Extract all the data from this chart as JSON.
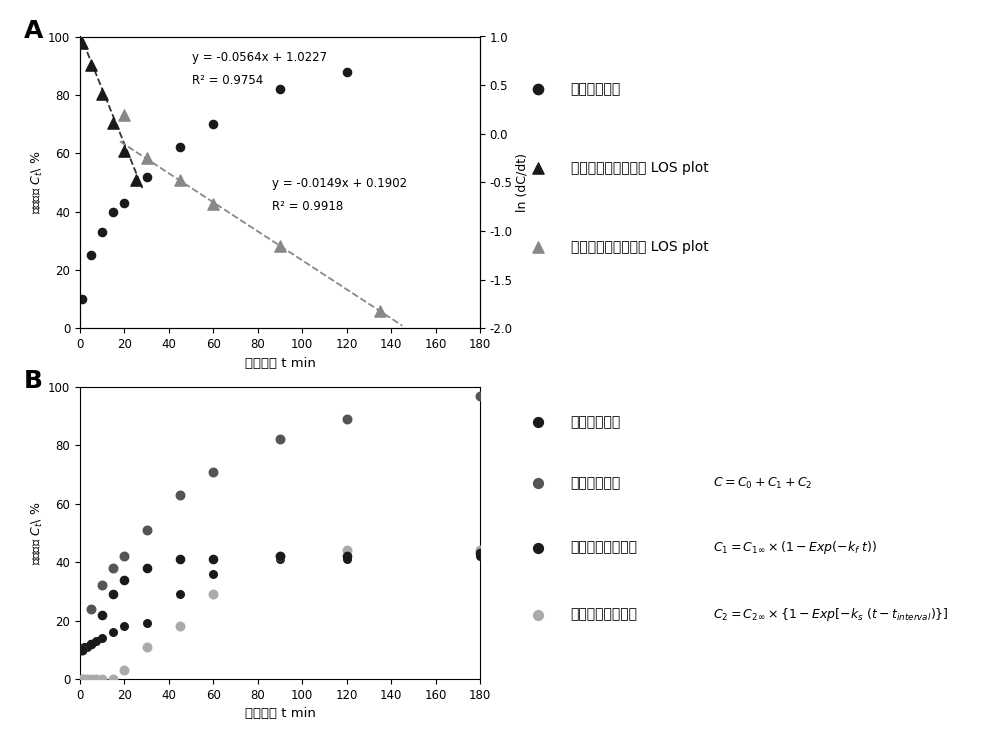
{
  "panel_A": {
    "raw_data_x": [
      1,
      5,
      10,
      15,
      20,
      30,
      45,
      60,
      90,
      120
    ],
    "raw_data_y": [
      10,
      25,
      33,
      40,
      43,
      52,
      62,
      70,
      82,
      88
    ],
    "fast_tri_x": [
      1,
      5,
      10,
      15,
      20,
      25
    ],
    "fast_tri_y_ln": [
      0.93,
      0.71,
      0.41,
      0.11,
      -0.18,
      -0.47
    ],
    "slow_tri_x": [
      20,
      30,
      45,
      60,
      90,
      135
    ],
    "slow_tri_y_ln": [
      0.19,
      -0.25,
      -0.47,
      -0.72,
      -1.15,
      -1.82
    ],
    "eq1": "y = -0.0564x + 1.0227",
    "r2_1": "R² = 0.9754",
    "eq2": "y = -0.0149x + 0.1902",
    "r2_2": "R² = 0.9918",
    "ylabel_left": "淠粉消化C_t %",
    "ylabel_right": "ln (dC/dt)",
    "xlabel": "消化时间 t min",
    "xlim": [
      0,
      180
    ],
    "ylim_left": [
      0,
      100
    ],
    "ylim_right": [
      -2.0,
      1.0
    ],
    "xticks": [
      0,
      20,
      40,
      60,
      80,
      100,
      120,
      140,
      160,
      180
    ],
    "yticks_left": [
      0,
      20,
      40,
      60,
      80,
      100
    ],
    "yticks_right": [
      -2.0,
      -1.5,
      -1.0,
      -0.5,
      0.0,
      0.5,
      1.0
    ],
    "label": "A"
  },
  "panel_B": {
    "raw_data_x": [
      1,
      5,
      10,
      15,
      20,
      30,
      45,
      60,
      90,
      120,
      180
    ],
    "raw_data_y": [
      10,
      12,
      22,
      29,
      34,
      38,
      41,
      41,
      42,
      42,
      43
    ],
    "combined_sim_x": [
      1,
      5,
      10,
      15,
      20,
      30,
      45,
      60,
      90,
      120,
      180
    ],
    "combined_sim_y": [
      10,
      24,
      32,
      38,
      42,
      51,
      63,
      71,
      82,
      89,
      97
    ],
    "fast_sim_x": [
      1,
      2,
      3,
      5,
      7,
      10,
      15,
      20,
      30,
      45,
      60,
      90,
      120,
      180
    ],
    "fast_sim_y": [
      10,
      11,
      11,
      12,
      13,
      14,
      16,
      18,
      19,
      29,
      36,
      41,
      41,
      42
    ],
    "slow_sim_x": [
      1,
      2,
      3,
      5,
      7,
      10,
      15,
      20,
      30,
      45,
      60,
      90,
      120,
      180
    ],
    "slow_sim_y": [
      0,
      0,
      0,
      0,
      0,
      0,
      0,
      3,
      11,
      18,
      29,
      42,
      44,
      44
    ],
    "ylabel_left": "淠粉消化C_t %",
    "xlabel": "消化时间 t min",
    "xlim": [
      0,
      180
    ],
    "ylim_left": [
      0,
      100
    ],
    "xticks": [
      0,
      20,
      40,
      60,
      80,
      100,
      120,
      140,
      160,
      180
    ],
    "yticks_left": [
      0,
      20,
      40,
      60,
      80,
      100
    ],
    "label": "B"
  },
  "legend_A": {
    "raw": "试验原始数据",
    "fast": "先期快速消化阶段的 LOS plot",
    "slow": "后期慢速消化阶段的 LOS plot"
  },
  "legend_B": {
    "raw": "试验原始数据",
    "combined": "综合模拟数据",
    "fast_label": "先期消化模拟数据",
    "slow_label": "后期消化模拟数据"
  },
  "colors": {
    "black": "#1a1a1a",
    "dark_tri": "#1a1a1a",
    "gray_tri": "#888888",
    "dark_gray_dot": "#555555",
    "light_gray_dot": "#aaaaaa"
  }
}
